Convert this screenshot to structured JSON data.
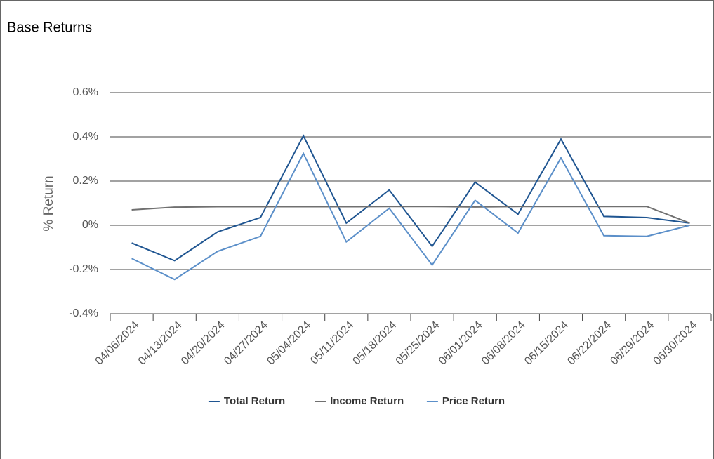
{
  "chart_data": {
    "type": "line",
    "title": "Base Returns",
    "y_label": "% Return",
    "categories": [
      "04/06/2024",
      "04/13/2024",
      "04/20/2024",
      "04/27/2024",
      "05/04/2024",
      "05/11/2024",
      "05/18/2024",
      "05/25/2024",
      "06/01/2024",
      "06/08/2024",
      "06/15/2024",
      "06/22/2024",
      "06/29/2024",
      "06/30/2024"
    ],
    "series": [
      {
        "name": "Total Return",
        "color": "#1f5591",
        "values": [
          -0.08,
          -0.16,
          -0.03,
          0.035,
          0.405,
          0.01,
          0.16,
          -0.095,
          0.195,
          0.05,
          0.39,
          0.04,
          0.035,
          0.01
        ]
      },
      {
        "name": "Income Return",
        "color": "#707070",
        "values": [
          0.07,
          0.082,
          0.084,
          0.084,
          0.084,
          0.084,
          0.085,
          0.085,
          0.083,
          0.085,
          0.085,
          0.085,
          0.085,
          0.01
        ]
      },
      {
        "name": "Price Return",
        "color": "#5b8fc9",
        "values": [
          -0.15,
          -0.245,
          -0.118,
          -0.05,
          0.325,
          -0.075,
          0.077,
          -0.18,
          0.113,
          -0.035,
          0.305,
          -0.047,
          -0.05,
          0
        ]
      }
    ],
    "ylim": [
      -0.4,
      0.6
    ],
    "yticks": [
      {
        "value": -0.4,
        "label": "-0.4%"
      },
      {
        "value": -0.2,
        "label": "-0.2%"
      },
      {
        "value": 0,
        "label": "0%"
      },
      {
        "value": 0.2,
        "label": "0.2%"
      },
      {
        "value": 0.4,
        "label": "0.4%"
      },
      {
        "value": 0.6,
        "label": "0.6%"
      }
    ],
    "grid": true,
    "legend": "bottom"
  }
}
